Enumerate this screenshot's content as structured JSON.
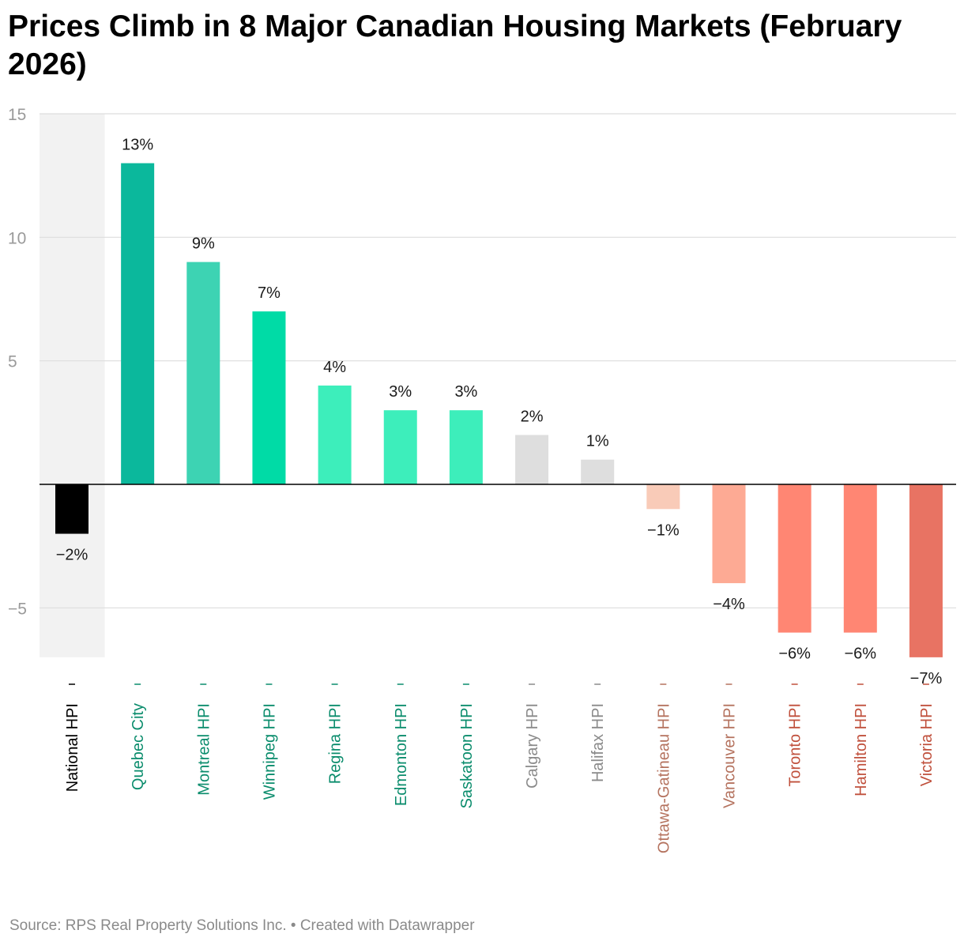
{
  "title": "Prices Climb in 8 Major Canadian Housing Markets (February 2026)",
  "source": "Source: RPS Real Property Solutions Inc. • Created with Datawrapper",
  "colors": {
    "grid": "#dddddd",
    "zero_line": "#000000",
    "highlight_band": "#f2f2f2",
    "tick_label": "#9a9a9a",
    "value_label": "#1a1a1a"
  },
  "chart_data": {
    "type": "bar",
    "categories": [
      "National HPI",
      "Quebec City",
      "Montreal HPI",
      "Winnipeg HPI",
      "Regina HPI",
      "Edmonton HPI",
      "Saskatoon HPI",
      "Calgary HPI",
      "Halifax HPI",
      "Ottawa-Gatineau HPI",
      "Vancouver HPI",
      "Toronto HPI",
      "Hamilton HPI",
      "Victoria HPI"
    ],
    "values": [
      -2,
      13,
      9,
      7,
      4,
      3,
      3,
      2,
      1,
      -1,
      -4,
      -6,
      -6,
      -7
    ],
    "value_labels": [
      "−2%",
      "13%",
      "9%",
      "7%",
      "4%",
      "3%",
      "3%",
      "2%",
      "1%",
      "−1%",
      "−4%",
      "−6%",
      "−6%",
      "−7%"
    ],
    "bar_colors": [
      "#000000",
      "#0bb89c",
      "#3dd3b3",
      "#00dba6",
      "#3deebb",
      "#3deebb",
      "#3deebb",
      "#dedede",
      "#dedede",
      "#f9cbb8",
      "#fdaa94",
      "#ff8673",
      "#ff8673",
      "#e87363"
    ],
    "label_colors": [
      "#000000",
      "#0a8c6c",
      "#0a8c6c",
      "#0a8c6c",
      "#0a8c6c",
      "#0a8c6c",
      "#0a8c6c",
      "#8a8a8a",
      "#8a8a8a",
      "#b5735f",
      "#b5735f",
      "#c0503c",
      "#c0503c",
      "#c0503c"
    ],
    "highlighted_category": "National HPI",
    "yticks": [
      15,
      10,
      5,
      -5
    ],
    "ytick_labels": [
      "15",
      "10",
      "5",
      "−5"
    ],
    "ylim": [
      -7,
      15
    ],
    "grid": true,
    "xlabel": "",
    "ylabel": ""
  }
}
